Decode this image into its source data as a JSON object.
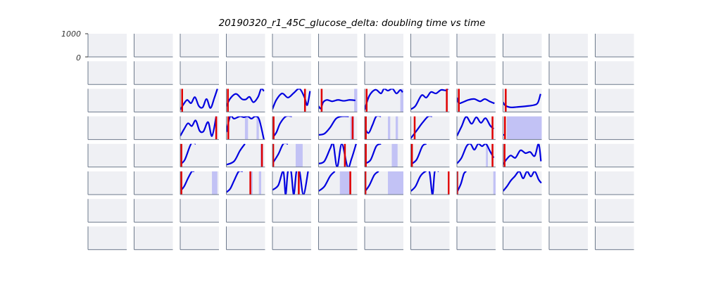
{
  "chart_data": {
    "type": "line",
    "title": "20190320_r1_45C_glucose_delta: doubling time vs time",
    "grid": {
      "rows": 8,
      "cols": 12
    },
    "ylim": [
      0,
      1000
    ],
    "yticks": [
      "1000",
      "0"
    ],
    "colors": {
      "panel_bg": "#eff0f4",
      "axis": "#6e7a8c",
      "line": "#0000e0",
      "marker": "#e00000",
      "fill": "#c2c2f5"
    },
    "panels": [
      {
        "row": 2,
        "col": 2,
        "x": [
          0,
          0.08,
          0.18,
          0.28,
          0.38,
          0.48,
          0.58,
          0.68,
          0.78,
          0.88,
          0.96
        ],
        "y": [
          100,
          320,
          520,
          380,
          640,
          260,
          200,
          560,
          170,
          600,
          1000
        ],
        "markers": [
          0.05
        ],
        "fills": []
      },
      {
        "row": 2,
        "col": 3,
        "x": [
          0,
          0.1,
          0.25,
          0.4,
          0.5,
          0.6,
          0.7,
          0.82,
          0.9,
          0.97
        ],
        "y": [
          250,
          580,
          780,
          560,
          540,
          650,
          420,
          650,
          1000,
          900
        ],
        "markers": [
          0.04
        ],
        "fills": []
      },
      {
        "row": 2,
        "col": 4,
        "x": [
          0,
          0.1,
          0.25,
          0.4,
          0.55,
          0.7,
          0.83,
          0.9,
          0.97
        ],
        "y": [
          120,
          520,
          800,
          620,
          820,
          1000,
          620,
          300,
          900
        ],
        "markers": [
          0.84
        ],
        "fills": []
      },
      {
        "row": 2,
        "col": 5,
        "x": [
          0,
          0.06,
          0.12,
          0.22,
          0.35,
          0.5,
          0.65,
          0.8,
          0.95
        ],
        "y": [
          250,
          150,
          420,
          520,
          460,
          520,
          480,
          520,
          500
        ],
        "markers": [
          0.08
        ],
        "fills": [
          [
            0.92,
            1.0
          ]
        ]
      },
      {
        "row": 2,
        "col": 6,
        "x": [
          0,
          0.12,
          0.28,
          0.42,
          0.5,
          0.6,
          0.72,
          0.82,
          0.92,
          0.98
        ],
        "y": [
          100,
          700,
          960,
          800,
          1000,
          920,
          1000,
          800,
          950,
          850
        ],
        "markers": [
          0.05
        ],
        "fills": [
          [
            0.92,
            1.0
          ]
        ]
      },
      {
        "row": 2,
        "col": 7,
        "x": [
          0,
          0.12,
          0.28,
          0.4,
          0.52,
          0.65,
          0.78,
          0.9,
          0.96
        ],
        "y": [
          120,
          260,
          720,
          620,
          860,
          800,
          950,
          930,
          1000
        ],
        "markers": [
          0.93
        ],
        "fills": []
      },
      {
        "row": 2,
        "col": 8,
        "x": [
          0,
          0.05,
          0.15,
          0.3,
          0.45,
          0.6,
          0.72,
          0.85,
          0.97
        ],
        "y": [
          620,
          380,
          420,
          520,
          560,
          460,
          560,
          450,
          370
        ],
        "markers": [
          0.05
        ],
        "fills": []
      },
      {
        "row": 2,
        "col": 9,
        "x": [
          0,
          0.06,
          0.2,
          0.4,
          0.6,
          0.8,
          0.9,
          0.97
        ],
        "y": [
          420,
          280,
          200,
          220,
          250,
          300,
          400,
          780
        ],
        "markers": [
          0.07
        ],
        "fills": []
      },
      {
        "row": 3,
        "col": 2,
        "x": [
          0,
          0.1,
          0.2,
          0.3,
          0.4,
          0.5,
          0.6,
          0.72,
          0.82,
          0.93
        ],
        "y": [
          150,
          450,
          700,
          580,
          820,
          380,
          350,
          750,
          150,
          1000
        ],
        "markers": [
          0.93
        ],
        "fills": []
      },
      {
        "row": 3,
        "col": 3,
        "x": [
          0,
          0.1,
          0.2,
          0.35,
          0.45,
          0.55,
          0.65,
          0.75,
          0.85,
          0.97
        ],
        "y": [
          320,
          1000,
          900,
          1000,
          960,
          1000,
          900,
          1000,
          850,
          0
        ],
        "markers": [
          0.05
        ],
        "fills": [
          [
            0.48,
            0.56
          ],
          [
            0.78,
            0.84
          ]
        ]
      },
      {
        "row": 3,
        "col": 4,
        "x": [
          0,
          0.1,
          0.2,
          0.35,
          0.5
        ],
        "y": [
          80,
          300,
          700,
          1000,
          1000
        ],
        "markers": [
          0.03
        ],
        "fills": []
      },
      {
        "row": 3,
        "col": 5,
        "x": [
          0,
          0.15,
          0.3,
          0.45,
          0.6,
          0.78
        ],
        "y": [
          200,
          250,
          520,
          900,
          1000,
          1000
        ],
        "markers": [
          0.88
        ],
        "fills": [
          [
            0.82,
            0.92
          ]
        ]
      },
      {
        "row": 3,
        "col": 6,
        "x": [
          0,
          0.1,
          0.2,
          0.3,
          0.42
        ],
        "y": [
          500,
          280,
          620,
          1000,
          1000
        ],
        "markers": [
          0.03
        ],
        "fills": [
          [
            0.6,
            0.66
          ],
          [
            0.8,
            0.86
          ]
        ]
      },
      {
        "row": 3,
        "col": 7,
        "x": [
          0,
          0.15,
          0.3,
          0.45,
          0.55
        ],
        "y": [
          50,
          380,
          720,
          1000,
          1000
        ],
        "markers": [
          0.1
        ],
        "fills": []
      },
      {
        "row": 3,
        "col": 8,
        "x": [
          0,
          0.12,
          0.24,
          0.38,
          0.5,
          0.62,
          0.74,
          0.86,
          0.95
        ],
        "y": [
          150,
          560,
          980,
          680,
          960,
          720,
          920,
          600,
          460
        ],
        "markers": [
          0.92
        ],
        "fills": []
      },
      {
        "row": 3,
        "col": 9,
        "x": [
          0,
          0.06
        ],
        "y": [
          200,
          200
        ],
        "markers": [
          0.05
        ],
        "fills": [
          [
            0.1,
            1.0
          ]
        ]
      },
      {
        "row": 4,
        "col": 2,
        "x": [
          0,
          0.12,
          0.28,
          0.4
        ],
        "y": [
          120,
          320,
          1000,
          1000
        ],
        "markers": [
          0.03
        ],
        "fills": []
      },
      {
        "row": 4,
        "col": 3,
        "x": [
          0,
          0.2,
          0.35,
          0.48
        ],
        "y": [
          100,
          250,
          700,
          1000
        ],
        "markers": [
          0.92
        ],
        "fills": [
          [
            0.88,
            0.95
          ]
        ]
      },
      {
        "row": 4,
        "col": 4,
        "x": [
          0,
          0.15,
          0.28,
          0.4
        ],
        "y": [
          150,
          550,
          1000,
          1000
        ],
        "markers": [
          0.02
        ],
        "fills": [
          [
            0.6,
            0.78
          ]
        ]
      },
      {
        "row": 4,
        "col": 5,
        "x": [
          0,
          0.15,
          0.3,
          0.38,
          0.48,
          0.6,
          0.75,
          0.85,
          0.97
        ],
        "y": [
          150,
          250,
          800,
          1000,
          0,
          1000,
          0,
          350,
          1000
        ],
        "markers": [
          0.68
        ],
        "fills": []
      },
      {
        "row": 4,
        "col": 6,
        "x": [
          0,
          0.15,
          0.3,
          0.42
        ],
        "y": [
          150,
          300,
          900,
          1000
        ],
        "markers": [
          0.03
        ],
        "fills": [
          [
            0.7,
            0.85
          ]
        ]
      },
      {
        "row": 4,
        "col": 7,
        "x": [
          0,
          0.15,
          0.3,
          0.4
        ],
        "y": [
          120,
          320,
          900,
          1000
        ],
        "markers": [
          0.03
        ],
        "fills": []
      },
      {
        "row": 4,
        "col": 8,
        "x": [
          0,
          0.12,
          0.25,
          0.35,
          0.45,
          0.55,
          0.65,
          0.75,
          0.85,
          0.95
        ],
        "y": [
          150,
          400,
          900,
          1000,
          750,
          1000,
          900,
          1000,
          700,
          400
        ],
        "markers": [
          0.92
        ],
        "fills": [
          [
            0.75,
            0.8
          ]
        ]
      },
      {
        "row": 4,
        "col": 9,
        "x": [
          0,
          0.1,
          0.2,
          0.32,
          0.45,
          0.58,
          0.7,
          0.82,
          0.92,
          0.98
        ],
        "y": [
          120,
          350,
          500,
          400,
          720,
          600,
          650,
          480,
          1000,
          250
        ],
        "markers": [
          0.04
        ],
        "fills": []
      },
      {
        "row": 5,
        "col": 2,
        "x": [
          0,
          0.1,
          0.2,
          0.3,
          0.36
        ],
        "y": [
          150,
          350,
          700,
          1000,
          1000
        ],
        "markers": [
          0.03
        ],
        "fills": [
          [
            0.82,
            0.96
          ]
        ]
      },
      {
        "row": 5,
        "col": 3,
        "x": [
          0,
          0.1,
          0.2,
          0.32,
          0.42
        ],
        "y": [
          100,
          250,
          600,
          1000,
          1000
        ],
        "markers": [
          0.62
        ],
        "fills": [
          [
            0.6,
            0.68
          ],
          [
            0.84,
            0.9
          ]
        ]
      },
      {
        "row": 5,
        "col": 4,
        "x": [
          0,
          0.15,
          0.28,
          0.34,
          0.4,
          0.48,
          0.55,
          0.62,
          0.7,
          0.8,
          0.92
        ],
        "y": [
          200,
          400,
          1000,
          0,
          1000,
          1000,
          0,
          1000,
          1000,
          0,
          1000
        ],
        "markers": [
          0.68
        ],
        "fills": []
      },
      {
        "row": 5,
        "col": 5,
        "x": [
          0,
          0.15,
          0.3,
          0.42
        ],
        "y": [
          150,
          350,
          800,
          1000
        ],
        "markers": [
          0.82
        ],
        "fills": [
          [
            0.55,
            0.8
          ]
        ]
      },
      {
        "row": 5,
        "col": 6,
        "x": [
          0,
          0.12,
          0.25,
          0.36
        ],
        "y": [
          120,
          400,
          850,
          1000
        ],
        "markers": [
          0.02
        ],
        "fills": [
          [
            0.6,
            1.0
          ]
        ]
      },
      {
        "row": 5,
        "col": 7,
        "x": [
          0,
          0.12,
          0.25,
          0.38,
          0.48,
          0.56,
          0.62,
          0.72
        ],
        "y": [
          150,
          350,
          800,
          1000,
          1000,
          0,
          1000,
          1000
        ],
        "markers": [
          0.98
        ],
        "fills": []
      },
      {
        "row": 5,
        "col": 8,
        "x": [
          0,
          0.1,
          0.18,
          0.24
        ],
        "y": [
          100,
          450,
          900,
          1000
        ],
        "markers": [
          0.01
        ],
        "fills": [
          [
            0.94,
            1.0
          ]
        ]
      },
      {
        "row": 5,
        "col": 9,
        "x": [
          0,
          0.1,
          0.2,
          0.3,
          0.42,
          0.52,
          0.62,
          0.72,
          0.82,
          0.92,
          0.99
        ],
        "y": [
          150,
          350,
          600,
          780,
          1000,
          700,
          1000,
          780,
          1000,
          650,
          500
        ],
        "markers": [],
        "fills": []
      }
    ]
  }
}
